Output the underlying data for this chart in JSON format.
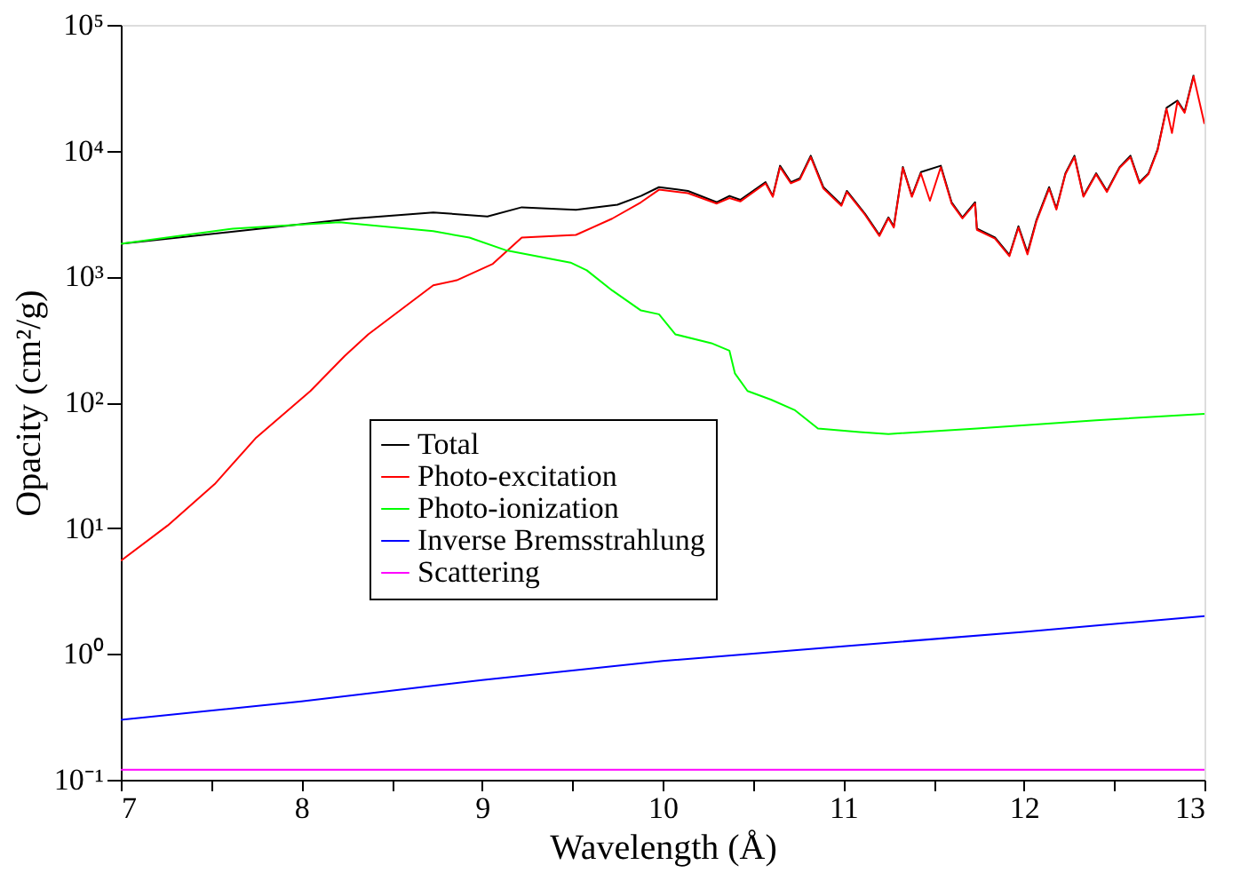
{
  "chart_data": {
    "type": "line",
    "xlabel": "Wavelength (Å)",
    "ylabel": "Opacity (cm²/g)",
    "log": "y",
    "xlim": [
      7,
      13
    ],
    "ylim": [
      0.1,
      100000
    ],
    "xticks": [
      7,
      {
        "value": 7.5,
        "label": null
      },
      8,
      {
        "value": 8.5,
        "label": null
      },
      9,
      {
        "value": 9.5,
        "label": null
      },
      10,
      {
        "value": 10.5,
        "label": null
      },
      11,
      {
        "value": 11.5,
        "label": null
      },
      12,
      {
        "value": 12.5,
        "label": null
      },
      13
    ],
    "yticks": [
      {
        "value": 0.1,
        "label": "10⁻¹"
      },
      {
        "value": 1,
        "label": "10⁰"
      },
      {
        "value": 10,
        "label": "10¹"
      },
      {
        "value": 100,
        "label": "10²"
      },
      {
        "value": 1000,
        "label": "10³"
      },
      {
        "value": 10000,
        "label": "10⁴"
      },
      {
        "value": 100000,
        "label": "10⁵"
      }
    ],
    "legend": "left",
    "series": [
      {
        "name": "Total",
        "color": "#000000",
        "x": [
          7,
          8.28,
          8.73,
          9.03,
          9.22,
          9.52,
          9.75,
          9.88,
          9.98,
          10.14,
          10.3,
          10.37,
          10.43,
          10.57,
          10.61,
          10.65,
          10.71,
          10.76,
          10.82,
          10.89,
          10.99,
          11.02,
          11.12,
          11.2,
          11.25,
          11.28,
          11.33,
          11.38,
          11.43,
          11.54,
          11.6,
          11.66,
          11.73,
          11.74,
          11.84,
          11.92,
          11.97,
          12.02,
          12.07,
          12.14,
          12.18,
          12.23,
          12.28,
          12.33,
          12.4,
          12.46,
          12.53,
          12.59,
          12.64,
          12.69,
          12.74,
          12.79,
          12.85,
          12.89,
          12.94
        ],
        "values": [
          1820,
          2880,
          3230,
          3000,
          3550,
          3390,
          3720,
          4370,
          5130,
          4790,
          3890,
          4370,
          4070,
          5620,
          4370,
          7590,
          5620,
          6030,
          9120,
          5130,
          3720,
          4790,
          3160,
          2140,
          2950,
          2510,
          7410,
          4370,
          6760,
          7590,
          3890,
          2950,
          3890,
          2400,
          2040,
          1480,
          2510,
          1550,
          2820,
          5130,
          3470,
          6610,
          9120,
          4370,
          6610,
          4790,
          7410,
          9120,
          5620,
          6610,
          10200,
          21900,
          25000,
          20400,
          40000
        ]
      },
      {
        "name": "Photo-excitation",
        "color": "#ff0000",
        "x": [
          7,
          7.26,
          7.52,
          7.75,
          8.05,
          8.24,
          8.37,
          8.73,
          8.86,
          9.06,
          9.22,
          9.52,
          9.72,
          9.88,
          9.98,
          10.14,
          10.3,
          10.37,
          10.43,
          10.57,
          10.61,
          10.65,
          10.71,
          10.76,
          10.82,
          10.89,
          10.99,
          11.02,
          11.12,
          11.2,
          11.25,
          11.28,
          11.33,
          11.38,
          11.43,
          11.48,
          11.54,
          11.6,
          11.66,
          11.73,
          11.74,
          11.84,
          11.92,
          11.97,
          12.02,
          12.07,
          12.14,
          12.18,
          12.23,
          12.28,
          12.33,
          12.4,
          12.46,
          12.53,
          12.59,
          12.64,
          12.69,
          12.74,
          12.79,
          12.82,
          12.85,
          12.89,
          12.94,
          13.0
        ],
        "values": [
          5.5,
          10.5,
          22.4,
          52.5,
          123,
          234,
          347,
          851,
          933,
          1260,
          2040,
          2140,
          2880,
          3890,
          4900,
          4600,
          3800,
          4200,
          3950,
          5500,
          4300,
          7400,
          5500,
          5900,
          8900,
          5000,
          3650,
          4700,
          3100,
          2100,
          2900,
          2450,
          7300,
          4300,
          6600,
          4000,
          7400,
          3800,
          2900,
          3800,
          2350,
          2000,
          1450,
          2450,
          1500,
          2750,
          5000,
          3400,
          6500,
          8900,
          4300,
          6500,
          4700,
          7300,
          8900,
          5500,
          6500,
          10000,
          21500,
          13800,
          24500,
          20000,
          39000,
          16300
        ]
      },
      {
        "name": "Photo-ionization",
        "color": "#00ff00",
        "x": [
          7,
          7.62,
          8.21,
          8.73,
          8.93,
          9.13,
          9.49,
          9.58,
          9.72,
          9.88,
          9.98,
          10.07,
          10.27,
          10.37,
          10.4,
          10.47,
          10.6,
          10.73,
          10.86,
          11.09,
          11.25,
          11.74,
          12.4,
          13.0
        ],
        "values": [
          1820,
          2400,
          2700,
          2290,
          2040,
          1620,
          1290,
          1120,
          776,
          537,
          501,
          347,
          295,
          257,
          170,
          123,
          105,
          87,
          62,
          58,
          56,
          62,
          72,
          81
        ]
      },
      {
        "name": "Inverse Bremsstrahlung",
        "color": "#0000ff",
        "x": [
          7,
          8,
          9,
          10,
          11,
          12,
          13
        ],
        "values": [
          0.3,
          0.42,
          0.62,
          0.88,
          1.15,
          1.5,
          2.0
        ]
      },
      {
        "name": "Scattering",
        "color": "#ff00ff",
        "x": [
          7,
          13
        ],
        "values": [
          0.12,
          0.12
        ]
      }
    ]
  }
}
